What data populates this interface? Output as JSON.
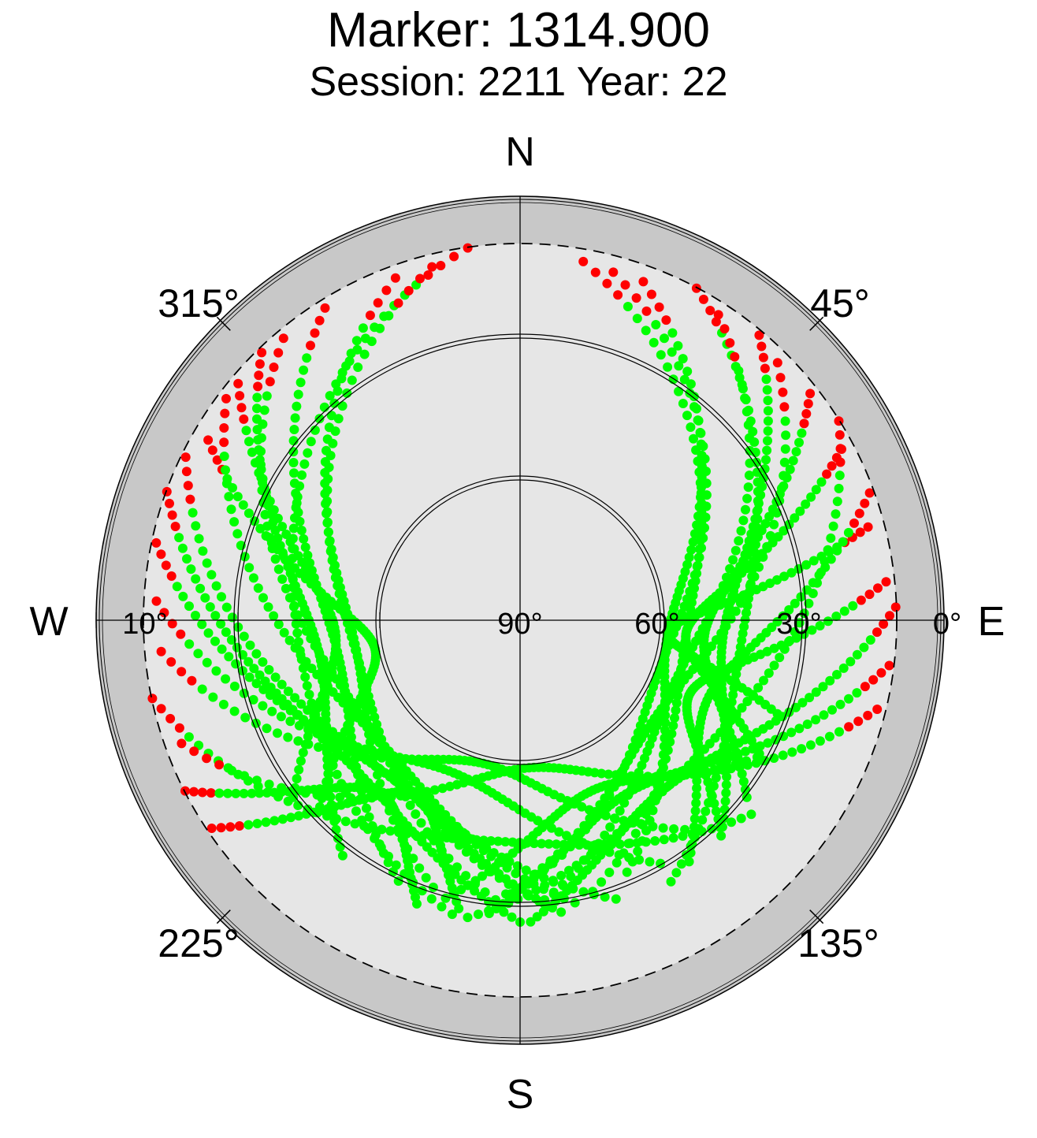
{
  "chart_data": {
    "type": "scatter",
    "projection": "polar skyplot (azimuth clockwise from north, elevation decreasing outward)",
    "title": "Marker: 1314.900",
    "subtitle": "Session: 2211 Year: 22",
    "compass": {
      "north": "N",
      "east": "E",
      "south": "S",
      "west": "W"
    },
    "azimuth_labels": [
      "45°",
      "135°",
      "225°",
      "315°"
    ],
    "azimuth_values": [
      45,
      135,
      225,
      315
    ],
    "elevation_labels": [
      "0°",
      "10°",
      "30°",
      "60°",
      "90°"
    ],
    "elevation_values": [
      0,
      10,
      30,
      60,
      90
    ],
    "elevation_range": [
      0,
      90
    ],
    "mask_elevation": 10,
    "series": [
      {
        "color": "#00ff00",
        "meaning": ""
      },
      {
        "color": "#ff0000",
        "meaning": ""
      }
    ],
    "colors": {
      "background_disk": "#e6e6e6",
      "mask_ring": "#c8c8c8",
      "track": "#00ff00",
      "low": "#ff0000"
    },
    "tracks": [
      {
        "type": "rising",
        "start_az": 352,
        "end_az": 193,
        "points": 70
      },
      {
        "type": "rising",
        "start_az": 316,
        "end_az": 217,
        "points": 70
      },
      {
        "type": "rising",
        "start_az": 328,
        "end_az": 205,
        "points": 70
      },
      {
        "type": "rising",
        "start_az": 340,
        "end_az": 198,
        "points": 70
      },
      {
        "type": "rising",
        "start_az": 300,
        "end_az": 227,
        "points": 70
      },
      {
        "type": "rising",
        "start_az": 290,
        "end_az": 180,
        "points": 70
      },
      {
        "type": "rising",
        "start_az": 282,
        "end_az": 172,
        "points": 70
      },
      {
        "type": "rising",
        "start_az": 307,
        "end_az": 169,
        "points": 70
      },
      {
        "type": "rising",
        "start_az": 273,
        "end_az": 150,
        "points": 70
      },
      {
        "type": "rising",
        "start_az": 265,
        "end_az": 140,
        "points": 70
      },
      {
        "type": "rising",
        "start_az": 258,
        "end_az": 130,
        "points": 70
      },
      {
        "type": "rising",
        "start_az": 296,
        "end_az": 161,
        "points": 70
      },
      {
        "type": "rising",
        "start_az": 320,
        "end_az": 174,
        "points": 70
      },
      {
        "type": "rising",
        "start_az": 346,
        "end_az": 185,
        "points": 70
      },
      {
        "type": "rising",
        "start_az": 250,
        "end_az": 120,
        "points": 70
      },
      {
        "type": "rising",
        "start_az": 243,
        "end_az": 200,
        "points": 60
      },
      {
        "type": "rising",
        "start_az": 236,
        "end_az": 192,
        "points": 60
      },
      {
        "type": "rising",
        "start_az": 310,
        "end_az": 232,
        "points": 60
      },
      {
        "type": "setting",
        "start_az": 10,
        "end_az": 165,
        "points": 70
      },
      {
        "type": "setting",
        "start_az": 20,
        "end_az": 157,
        "points": 70
      },
      {
        "type": "setting",
        "start_az": 28,
        "end_az": 150,
        "points": 70
      },
      {
        "type": "setting",
        "start_az": 40,
        "end_az": 137,
        "points": 70
      },
      {
        "type": "setting",
        "start_az": 52,
        "end_az": 128,
        "points": 70
      },
      {
        "type": "setting",
        "start_az": 62,
        "end_az": 120,
        "points": 70
      },
      {
        "type": "setting",
        "start_az": 75,
        "end_az": 110,
        "points": 70
      },
      {
        "type": "setting",
        "start_az": 88,
        "end_az": 178,
        "points": 70
      },
      {
        "type": "setting",
        "start_az": 97,
        "end_az": 186,
        "points": 70
      },
      {
        "type": "setting",
        "start_az": 104,
        "end_az": 195,
        "points": 70
      },
      {
        "type": "setting",
        "start_az": 33,
        "end_az": 175,
        "points": 70
      },
      {
        "type": "setting",
        "start_az": 15,
        "end_az": 182,
        "points": 70
      },
      {
        "type": "setting",
        "start_az": 58,
        "end_az": 190,
        "points": 70
      },
      {
        "type": "setting",
        "start_az": 70,
        "end_az": 145,
        "points": 60
      },
      {
        "type": "setting",
        "start_az": 84,
        "end_az": 136,
        "points": 60
      },
      {
        "type": "setting",
        "start_az": 45,
        "end_az": 185,
        "points": 70
      }
    ]
  }
}
